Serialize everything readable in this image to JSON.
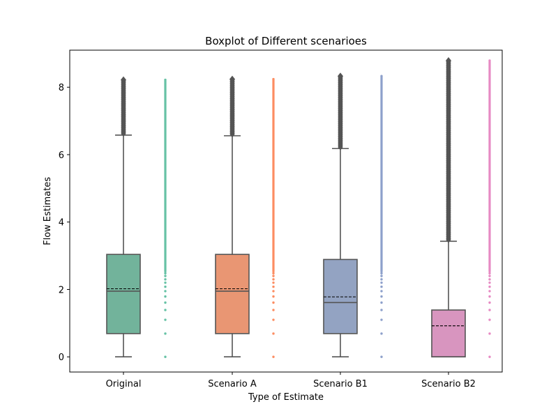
{
  "chart_data": {
    "type": "box",
    "title": "Boxplot of Different scenarioes",
    "xlabel": "Type of Estimate",
    "ylabel": "Flow Estimates",
    "ylim": [
      -0.45,
      9.1
    ],
    "yticks": [
      0,
      2,
      4,
      6,
      8
    ],
    "grid": false,
    "legend": "none",
    "median_line": "solid",
    "mean_line": "dashed",
    "categories": [
      "Original",
      "Scenario A",
      "Scenario B1",
      "Scenario B2"
    ],
    "series": [
      {
        "category": "Original",
        "color": "#66c2a5",
        "box_fill": "#72b39b",
        "min": 0,
        "q1": 0.69,
        "median": 1.95,
        "mean": 2.02,
        "q3": 3.04,
        "whisker_high": 6.58,
        "outlier_max": 8.22,
        "strip_discrete": [
          0,
          0.69,
          1.1,
          1.39,
          1.61,
          1.79,
          1.95,
          2.08,
          2.2,
          2.3,
          2.4,
          2.48
        ],
        "strip_dense_from": 2.5,
        "strip_max": 8.22
      },
      {
        "category": "Scenario A",
        "color": "#fc8d62",
        "box_fill": "#e99673",
        "min": 0,
        "q1": 0.69,
        "median": 1.95,
        "mean": 2.02,
        "q3": 3.04,
        "whisker_high": 6.56,
        "outlier_max": 8.24,
        "strip_discrete": [
          0,
          0.69,
          1.1,
          1.39,
          1.61,
          1.79,
          1.95,
          2.08,
          2.2,
          2.3,
          2.4,
          2.48
        ],
        "strip_dense_from": 2.5,
        "strip_max": 8.24
      },
      {
        "category": "Scenario B1",
        "color": "#8da0cb",
        "box_fill": "#93a3c2",
        "min": 0,
        "q1": 0.69,
        "median": 1.61,
        "mean": 1.78,
        "q3": 2.89,
        "whisker_high": 6.18,
        "outlier_max": 8.33,
        "strip_discrete": [
          0,
          0.69,
          1.1,
          1.39,
          1.61,
          1.79,
          1.95,
          2.08,
          2.2,
          2.3,
          2.4,
          2.48
        ],
        "strip_dense_from": 2.5,
        "strip_max": 8.33
      },
      {
        "category": "Scenario B2",
        "color": "#e78ac3",
        "box_fill": "#d895bf",
        "min": 0,
        "q1": 0,
        "median": 0,
        "mean": 0.92,
        "q3": 1.39,
        "whisker_high": 3.43,
        "outlier_max": 8.79,
        "strip_discrete": [
          0,
          0.69,
          1.1,
          1.39,
          1.61,
          1.79,
          1.95,
          2.08,
          2.2,
          2.3,
          2.4,
          2.48
        ],
        "strip_dense_from": 2.5,
        "strip_max": 8.79
      }
    ]
  }
}
